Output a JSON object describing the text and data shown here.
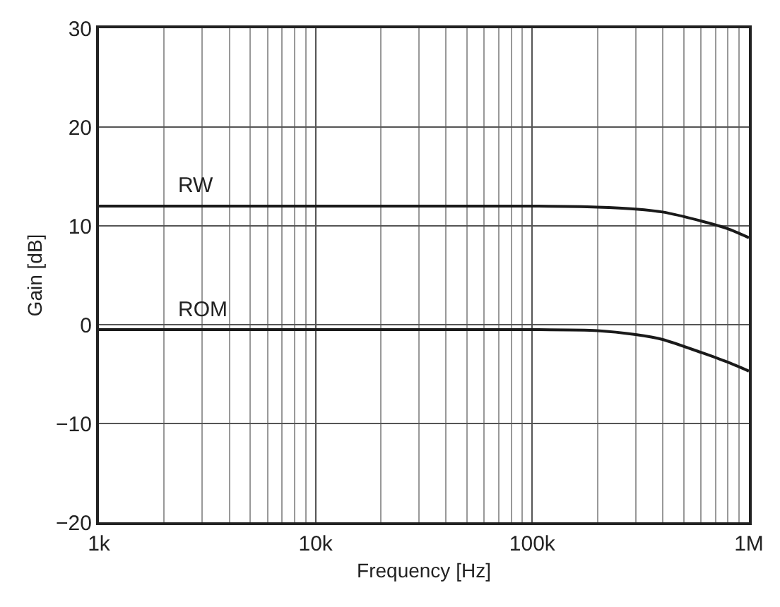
{
  "chart_data": {
    "type": "line",
    "xlabel": "Frequency [Hz]",
    "ylabel": "Gain [dB]",
    "log": "x",
    "grid": true,
    "marker": "none",
    "line_style": "solid",
    "x": [
      1000,
      10000,
      100000,
      200000,
      300000,
      400000,
      600000,
      800000,
      1000000
    ],
    "series": [
      {
        "name": "RW",
        "color": "#1a1a1a",
        "values": [
          12,
          12,
          12,
          11.9,
          11.7,
          11.4,
          10.5,
          9.7,
          8.8
        ]
      },
      {
        "name": "ROM",
        "color": "#1a1a1a",
        "values": [
          -0.5,
          -0.5,
          -0.5,
          -0.6,
          -1.0,
          -1.5,
          -2.8,
          -3.8,
          -4.7
        ]
      }
    ],
    "xlim": [
      1000,
      1000000
    ],
    "xticks": [
      {
        "value": 1000,
        "label": "1k"
      },
      {
        "value": 10000,
        "label": "10k"
      },
      {
        "value": 100000,
        "label": "100k"
      },
      {
        "value": 1000000,
        "label": "1M"
      }
    ],
    "ylim": [
      -20,
      30
    ],
    "yticks": [
      {
        "value": -20,
        "label": "−20"
      },
      {
        "value": -10,
        "label": "−10"
      },
      0,
      10,
      20,
      30
    ]
  }
}
